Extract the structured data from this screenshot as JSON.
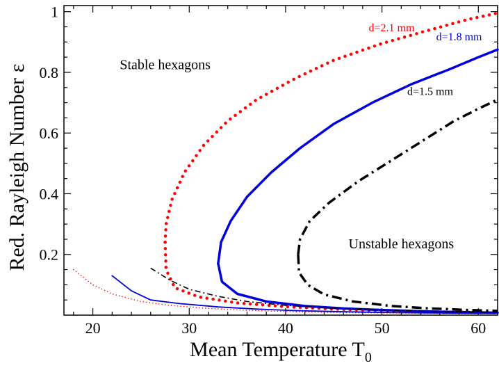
{
  "chart_data": {
    "type": "line",
    "xlabel": "Mean Temperature T",
    "xlabel_sub": "0",
    "ylabel": "Red. Rayleigh Number",
    "ylabel_symbol": "ε",
    "xlim": [
      17,
      62
    ],
    "ylim": [
      0,
      1.02
    ],
    "xticks": [
      20,
      30,
      40,
      50,
      60
    ],
    "yticks": [
      0.2,
      0.4,
      0.6,
      0.8,
      1
    ],
    "xtick_labels": [
      "20",
      "30",
      "40",
      "50",
      "60"
    ],
    "ytick_labels": [
      "0.2",
      "0.4",
      "0.6",
      "0.8",
      "1"
    ],
    "grid": false,
    "annotations": [
      {
        "text": "Stable hexagons",
        "x": 27.5,
        "y": 0.81
      },
      {
        "text": "Unstable hexagons",
        "x": 52,
        "y": 0.22
      }
    ],
    "series": [
      {
        "name": "d=2.1 mm",
        "label_at": [
          51,
          0.935
        ],
        "color": "#ff0000",
        "style": "dotted-thick",
        "x": [
          27.5,
          27.6,
          28.2,
          29.5,
          31.5,
          34,
          37,
          41,
          45,
          50,
          55,
          59,
          62
        ],
        "y": [
          0.24,
          0.3,
          0.38,
          0.47,
          0.56,
          0.64,
          0.71,
          0.78,
          0.84,
          0.895,
          0.94,
          0.975,
          0.995
        ]
      },
      {
        "name": "d=2.1 mm lower",
        "color": "#ff0000",
        "style": "dotted-thick",
        "x": [
          27.5,
          27.6,
          28.5,
          31,
          35,
          40,
          45,
          50,
          55,
          60,
          62
        ],
        "y": [
          0.24,
          0.15,
          0.09,
          0.06,
          0.04,
          0.028,
          0.02,
          0.015,
          0.011,
          0.009,
          0.008
        ]
      },
      {
        "name": "d=1.8 mm",
        "label_at": [
          58,
          0.905
        ],
        "color": "#0000dd",
        "style": "solid-thick",
        "x": [
          33,
          33.3,
          34.3,
          36,
          38.5,
          41.5,
          45,
          49,
          53,
          57,
          60,
          62
        ],
        "y": [
          0.17,
          0.24,
          0.31,
          0.39,
          0.47,
          0.55,
          0.63,
          0.7,
          0.76,
          0.81,
          0.85,
          0.875
        ]
      },
      {
        "name": "d=1.8 mm lower",
        "color": "#0000dd",
        "style": "solid-thick",
        "x": [
          33,
          33.4,
          35,
          38,
          42,
          46,
          50,
          55,
          60,
          62
        ],
        "y": [
          0.17,
          0.11,
          0.07,
          0.045,
          0.03,
          0.022,
          0.017,
          0.012,
          0.009,
          0.008
        ]
      },
      {
        "name": "d=1.5 mm",
        "label_at": [
          55,
          0.725
        ],
        "color": "#000000",
        "style": "dashdot-thick",
        "x": [
          41.3,
          41.5,
          42.5,
          44.5,
          47.5,
          51,
          54.5,
          57.5,
          60,
          62
        ],
        "y": [
          0.2,
          0.25,
          0.31,
          0.37,
          0.44,
          0.51,
          0.58,
          0.64,
          0.68,
          0.71
        ]
      },
      {
        "name": "d=1.5 mm lower",
        "color": "#000000",
        "style": "dashdot-thick",
        "x": [
          41.3,
          41.4,
          42.3,
          44,
          47,
          51,
          55,
          59,
          62
        ],
        "y": [
          0.2,
          0.14,
          0.1,
          0.068,
          0.045,
          0.03,
          0.022,
          0.017,
          0.014
        ]
      },
      {
        "name": "d=2.1 mm thin",
        "color": "#ff0000",
        "style": "dotted-thin",
        "x": [
          18,
          20,
          22,
          25,
          28,
          32,
          36,
          40,
          45,
          50,
          55,
          60,
          62
        ],
        "y": [
          0.15,
          0.1,
          0.07,
          0.045,
          0.032,
          0.022,
          0.016,
          0.012,
          0.009,
          0.007,
          0.006,
          0.005,
          0.005
        ]
      },
      {
        "name": "d=1.8 mm thin",
        "color": "#0000dd",
        "style": "solid-thin",
        "x": [
          22,
          24,
          26,
          29,
          33,
          37,
          41,
          45,
          50,
          55,
          60,
          62
        ],
        "y": [
          0.13,
          0.08,
          0.05,
          0.038,
          0.027,
          0.02,
          0.015,
          0.012,
          0.009,
          0.007,
          0.006,
          0.006
        ]
      },
      {
        "name": "d=1.5 mm thin",
        "color": "#000000",
        "style": "dashdot-thin",
        "x": [
          26,
          28,
          30,
          33,
          36,
          40,
          44,
          48,
          52,
          56,
          60,
          62
        ],
        "y": [
          0.155,
          0.115,
          0.085,
          0.062,
          0.045,
          0.032,
          0.024,
          0.019,
          0.015,
          0.012,
          0.01,
          0.009
        ]
      }
    ]
  }
}
